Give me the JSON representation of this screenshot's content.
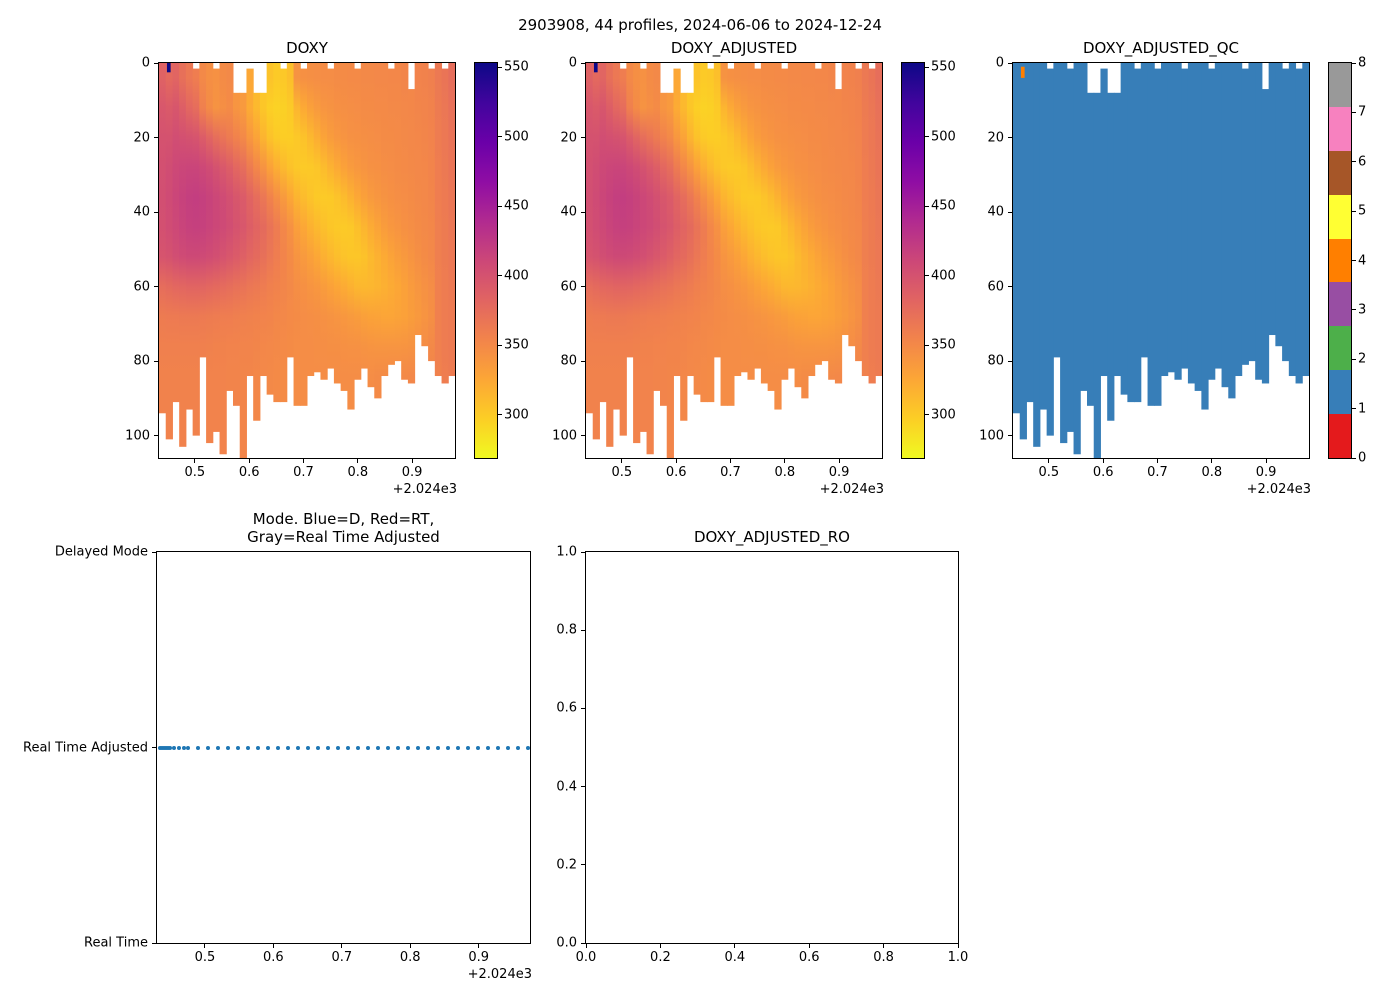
{
  "figure_title": "2903908, 44 profiles, 2024-06-06 to 2024-12-24",
  "colors": {
    "plasma_r": [
      "#0d0887",
      "#41049d",
      "#6a00a8",
      "#8f0da4",
      "#b12a90",
      "#cc4778",
      "#e16462",
      "#f2844b",
      "#fca636",
      "#fcce25",
      "#f0f921"
    ],
    "qc_palette": [
      "#e41a1c",
      "#377eb8",
      "#4daf4a",
      "#984ea3",
      "#ff7f00",
      "#ffff33",
      "#a65628",
      "#f781bf",
      "#999999"
    ],
    "dot_blue": "#1f77b4",
    "axis_line": "#000000"
  },
  "chart_data": [
    {
      "id": "doxy",
      "type": "heatmap",
      "title": "DOXY",
      "xlim": [
        2024.434,
        2024.979
      ],
      "ylim": [
        0,
        106
      ],
      "y_down": true,
      "xtick_values": [
        2024.5,
        2024.6,
        2024.7,
        2024.8,
        2024.9
      ],
      "xtick_labels": [
        "0.5",
        "0.6",
        "0.7",
        "0.8",
        "0.9"
      ],
      "x_offset_label": "+2.024e3",
      "ytick_values": [
        0,
        20,
        40,
        60,
        80,
        100
      ],
      "ytick_labels": [
        "0",
        "20",
        "40",
        "60",
        "80",
        "100"
      ],
      "n_profiles": 44,
      "colorbar": {
        "vmin": 269,
        "vmax": 553,
        "ticks": [
          550,
          500,
          450,
          400,
          350,
          300
        ],
        "tick_labels": [
          "550",
          "500",
          "450",
          "400",
          "350",
          "300"
        ],
        "colormap": "plasma_r"
      },
      "depth_bin_centers": [
        4,
        12,
        20,
        28,
        36,
        44,
        52,
        60,
        68,
        76,
        84,
        92,
        100,
        108
      ],
      "column_bottom_depth": [
        94,
        101,
        91,
        103,
        93,
        100,
        79,
        102,
        99,
        105,
        88,
        92,
        106,
        84,
        96,
        84,
        89,
        91,
        91,
        79,
        92,
        92,
        84,
        83,
        85,
        82,
        86,
        88,
        93,
        85,
        82,
        87,
        90,
        84,
        81,
        80,
        85,
        86,
        73,
        76,
        80,
        84,
        86,
        84
      ],
      "top_gaps": [
        {
          "col": 11,
          "to": 8
        },
        {
          "col": 12,
          "to": 8
        },
        {
          "col": 14,
          "to": 8
        },
        {
          "col": 15,
          "to": 8
        },
        {
          "col": 37,
          "to": 7
        }
      ],
      "top_dashes": [
        5,
        8,
        13,
        18,
        21,
        25,
        29,
        34,
        40,
        42
      ],
      "top_dash_depth": 1.5,
      "surface_spikes": [
        {
          "col": 1,
          "to": 2.5,
          "value": 553
        }
      ],
      "grid_values": [
        [
          385,
          395,
          400,
          402,
          403,
          402,
          398,
          375,
          362,
          358,
          356,
          356,
          356,
          356
        ],
        [
          378,
          392,
          400,
          405,
          407,
          406,
          400,
          377,
          363,
          358,
          356,
          356,
          356,
          356
        ],
        [
          382,
          396,
          404,
          410,
          412,
          410,
          404,
          380,
          363,
          358,
          356,
          356,
          356,
          356
        ],
        [
          372,
          388,
          402,
          412,
          416,
          414,
          407,
          381,
          364,
          358,
          356,
          356,
          356,
          356
        ],
        [
          365,
          380,
          400,
          413,
          419,
          417,
          409,
          383,
          364,
          358,
          356,
          356,
          356,
          356
        ],
        [
          360,
          375,
          398,
          413,
          420,
          418,
          409,
          383,
          364,
          358,
          356,
          356,
          356,
          356
        ],
        [
          350,
          358,
          390,
          410,
          418,
          417,
          408,
          382,
          363,
          358,
          356,
          356,
          356,
          356
        ],
        [
          345,
          348,
          382,
          406,
          415,
          414,
          406,
          380,
          362,
          357,
          355,
          355,
          355,
          355
        ],
        [
          343,
          342,
          374,
          400,
          411,
          411,
          403,
          378,
          361,
          356,
          355,
          355,
          355,
          355
        ],
        [
          348,
          345,
          368,
          394,
          407,
          408,
          399,
          376,
          360,
          356,
          355,
          355,
          355,
          355
        ],
        [
          350,
          348,
          362,
          388,
          402,
          404,
          395,
          374,
          360,
          355,
          354,
          354,
          354,
          354
        ],
        [
          null,
          340,
          356,
          380,
          396,
          399,
          391,
          371,
          359,
          355,
          354,
          354,
          354,
          354
        ],
        [
          null,
          336,
          350,
          374,
          391,
          395,
          387,
          369,
          358,
          354,
          353,
          353,
          353,
          353
        ],
        [
          325,
          322,
          338,
          362,
          383,
          388,
          381,
          366,
          357,
          354,
          353,
          353,
          353,
          353
        ],
        [
          null,
          312,
          328,
          352,
          375,
          383,
          377,
          364,
          356,
          353,
          352,
          352,
          352,
          352
        ],
        [
          null,
          303,
          316,
          342,
          366,
          377,
          372,
          361,
          355,
          352,
          351,
          351,
          351,
          351
        ],
        [
          305,
          297,
          306,
          330,
          356,
          369,
          366,
          358,
          354,
          351,
          350,
          350,
          350,
          350
        ],
        [
          300,
          295,
          300,
          320,
          346,
          361,
          360,
          356,
          352,
          350,
          349,
          349,
          349,
          349
        ],
        [
          302,
          296,
          298,
          312,
          336,
          352,
          354,
          353,
          351,
          349,
          348,
          348,
          348,
          348
        ],
        [
          308,
          300,
          298,
          306,
          326,
          343,
          348,
          350,
          349,
          348,
          348,
          348,
          348,
          348
        ],
        [
          342,
          315,
          302,
          302,
          316,
          332,
          341,
          346,
          348,
          347,
          347,
          347,
          347,
          347
        ],
        [
          344,
          324,
          306,
          300,
          310,
          325,
          336,
          344,
          347,
          347,
          347,
          347,
          347,
          347
        ],
        [
          345,
          331,
          313,
          301,
          305,
          318,
          331,
          341,
          346,
          347,
          347,
          347,
          347,
          347
        ],
        [
          346,
          336,
          321,
          304,
          301,
          312,
          325,
          338,
          345,
          346,
          347,
          347,
          347,
          347
        ],
        [
          347,
          340,
          328,
          310,
          300,
          307,
          319,
          334,
          343,
          346,
          347,
          347,
          347,
          347
        ],
        [
          347,
          342,
          334,
          317,
          301,
          303,
          314,
          330,
          342,
          345,
          347,
          347,
          347,
          347
        ],
        [
          348,
          344,
          338,
          324,
          305,
          301,
          309,
          326,
          340,
          345,
          347,
          347,
          347,
          347
        ],
        [
          348,
          345,
          341,
          330,
          311,
          300,
          305,
          322,
          338,
          344,
          347,
          347,
          347,
          347
        ],
        [
          349,
          346,
          343,
          335,
          318,
          302,
          303,
          318,
          336,
          343,
          347,
          347,
          347,
          347
        ],
        [
          349,
          347,
          344,
          338,
          325,
          308,
          303,
          314,
          334,
          343,
          347,
          347,
          347,
          347
        ],
        [
          350,
          348,
          345,
          341,
          331,
          315,
          306,
          313,
          331,
          342,
          347,
          348,
          348,
          348
        ],
        [
          350,
          348,
          346,
          343,
          336,
          322,
          312,
          314,
          329,
          341,
          347,
          348,
          348,
          348
        ],
        [
          351,
          349,
          347,
          344,
          339,
          328,
          318,
          316,
          328,
          340,
          348,
          349,
          349,
          349
        ],
        [
          351,
          349,
          348,
          346,
          342,
          334,
          323,
          319,
          327,
          340,
          348,
          350,
          350,
          350
        ],
        [
          352,
          350,
          348,
          347,
          344,
          338,
          328,
          322,
          327,
          340,
          349,
          351,
          351,
          351
        ],
        [
          352,
          350,
          349,
          348,
          346,
          341,
          333,
          326,
          328,
          340,
          349,
          352,
          352,
          352
        ],
        [
          353,
          351,
          350,
          349,
          347,
          344,
          337,
          330,
          330,
          341,
          350,
          353,
          353,
          353
        ],
        [
          null,
          352,
          351,
          350,
          348,
          346,
          341,
          335,
          333,
          342,
          351,
          354,
          354,
          354
        ],
        [
          355,
          353,
          352,
          351,
          350,
          348,
          345,
          339,
          337,
          344,
          352,
          355,
          355,
          355
        ],
        [
          356,
          354,
          353,
          352,
          351,
          350,
          348,
          343,
          341,
          347,
          353,
          355,
          355,
          355
        ],
        [
          358,
          356,
          355,
          354,
          353,
          352,
          351,
          347,
          345,
          350,
          354,
          356,
          356,
          356
        ],
        [
          364,
          362,
          361,
          360,
          360,
          359,
          359,
          358,
          358,
          358,
          357,
          357,
          357,
          357
        ],
        [
          368,
          366,
          365,
          364,
          363,
          362,
          362,
          361,
          361,
          361,
          360,
          360,
          360,
          360
        ],
        [
          374,
          371,
          369,
          368,
          367,
          366,
          365,
          364,
          363,
          363,
          362,
          362,
          362,
          362
        ]
      ]
    },
    {
      "id": "adj",
      "type": "heatmap",
      "title": "DOXY_ADJUSTED",
      "grid_ref": "doxy",
      "xlim": [
        2024.434,
        2024.979
      ],
      "ylim": [
        0,
        106
      ],
      "y_down": true,
      "xtick_values": [
        2024.5,
        2024.6,
        2024.7,
        2024.8,
        2024.9
      ],
      "xtick_labels": [
        "0.5",
        "0.6",
        "0.7",
        "0.8",
        "0.9"
      ],
      "x_offset_label": "+2.024e3",
      "ytick_values": [
        0,
        20,
        40,
        60,
        80,
        100
      ],
      "ytick_labels": [
        "0",
        "20",
        "40",
        "60",
        "80",
        "100"
      ],
      "n_profiles": 44,
      "colorbar": {
        "vmin": 269,
        "vmax": 553,
        "ticks": [
          550,
          500,
          450,
          400,
          350,
          300
        ],
        "tick_labels": [
          "550",
          "500",
          "450",
          "400",
          "350",
          "300"
        ],
        "colormap": "plasma_r"
      }
    },
    {
      "id": "qc",
      "type": "heatmap",
      "title": "DOXY_ADJUSTED_QC",
      "discrete": true,
      "fill_value": 1,
      "grid_ref": "doxy",
      "xlim": [
        2024.434,
        2024.979
      ],
      "ylim": [
        0,
        106
      ],
      "y_down": true,
      "xtick_values": [
        2024.5,
        2024.6,
        2024.7,
        2024.8,
        2024.9
      ],
      "xtick_labels": [
        "0.5",
        "0.6",
        "0.7",
        "0.8",
        "0.9"
      ],
      "x_offset_label": "+2.024e3",
      "ytick_values": [
        0,
        20,
        40,
        60,
        80,
        100
      ],
      "ytick_labels": [
        "0",
        "20",
        "40",
        "60",
        "80",
        "100"
      ],
      "n_profiles": 44,
      "colorbar": {
        "ticks": [
          8,
          7,
          6,
          5,
          4,
          3,
          2,
          1,
          0
        ],
        "tick_labels": [
          "8",
          "7",
          "6",
          "5",
          "4",
          "3",
          "2",
          "1",
          "0"
        ],
        "n_segments": 9
      },
      "cells": [
        {
          "col": 1,
          "from": 1,
          "to": 4,
          "value": 4
        }
      ]
    },
    {
      "id": "mode",
      "type": "scatter",
      "title_line1": "Mode. Blue=D, Red=RT,",
      "title_line2": "Gray=Real Time Adjusted",
      "xlim": [
        2024.43,
        2024.975
      ],
      "ylim": [
        0,
        1
      ],
      "y_down": false,
      "xtick_values": [
        2024.5,
        2024.6,
        2024.7,
        2024.8,
        2024.9
      ],
      "xtick_labels": [
        "0.5",
        "0.6",
        "0.7",
        "0.8",
        "0.9"
      ],
      "x_offset_label": "+2.024e3",
      "ytick_values": [
        1,
        0.5,
        0
      ],
      "ytick_labels": [
        "Delayed Mode",
        "Real Time Adjusted",
        "Real Time"
      ],
      "points_y_label": "Real Time Adjusted",
      "points_x": [
        2024.434,
        2024.437,
        2024.44,
        2024.443,
        2024.446,
        2024.449,
        2024.455,
        2024.462,
        2024.469,
        2024.476,
        2024.49,
        2024.505,
        2024.519,
        2024.534,
        2024.548,
        2024.563,
        2024.578,
        2024.592,
        2024.607,
        2024.621,
        2024.636,
        2024.651,
        2024.665,
        2024.68,
        2024.694,
        2024.709,
        2024.724,
        2024.738,
        2024.753,
        2024.767,
        2024.782,
        2024.797,
        2024.811,
        2024.826,
        2024.84,
        2024.855,
        2024.87,
        2024.884,
        2024.899,
        2024.913,
        2024.928,
        2024.943,
        2024.957,
        2024.972
      ]
    },
    {
      "id": "ro",
      "type": "empty",
      "title": "DOXY_ADJUSTED_RO",
      "xlim": [
        0,
        1
      ],
      "ylim": [
        0,
        1
      ],
      "y_down": false,
      "xtick_values": [
        0,
        0.2,
        0.4,
        0.6,
        0.8,
        1.0
      ],
      "xtick_labels": [
        "0.0",
        "0.2",
        "0.4",
        "0.6",
        "0.8",
        "1.0"
      ],
      "ytick_values": [
        1.0,
        0.8,
        0.6,
        0.4,
        0.2,
        0
      ],
      "ytick_labels": [
        "1.0",
        "0.8",
        "0.6",
        "0.4",
        "0.2",
        "0.0"
      ]
    }
  ]
}
